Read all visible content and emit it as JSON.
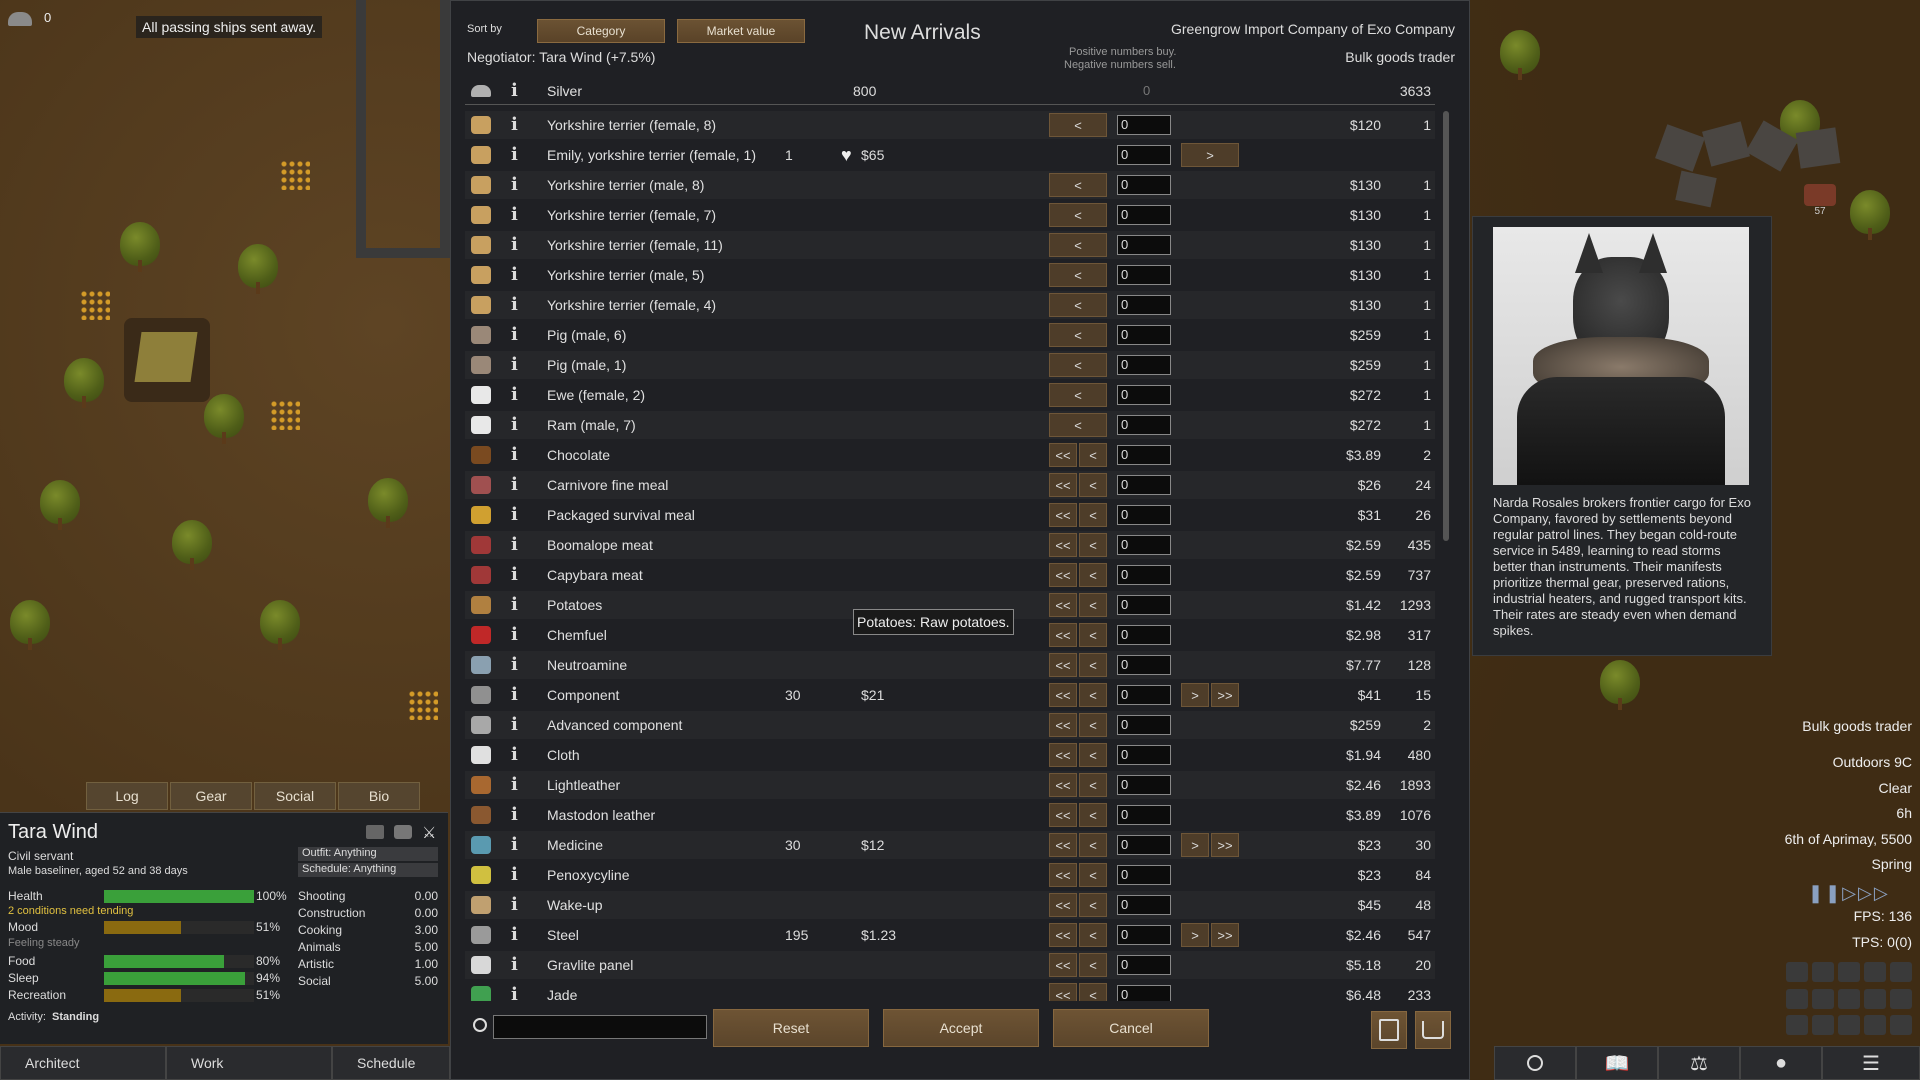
{
  "colony": {
    "count": "0",
    "message": "All passing ships sent away."
  },
  "trade": {
    "sort_label": "Sort by",
    "sort_buttons": [
      "Category",
      "Market value"
    ],
    "title": "New Arrivals",
    "negotiator": "Negotiator: Tara Wind (+7.5%)",
    "hint_buy": "Positive numbers buy.",
    "hint_sell": "Negative numbers sell.",
    "trader_name": "Greengrow Import Company of Exo Company",
    "trader_kind": "Bulk goods trader",
    "silver": {
      "label": "Silver",
      "player": "800",
      "qty": "0",
      "trader": "3633"
    },
    "tooltip": "Potatoes: Raw potatoes.",
    "rows": [
      {
        "label": "Yorkshire terrier (female, 8)",
        "player": "",
        "pprice": "",
        "left": "<",
        "right": "",
        "qty": "0",
        "tprice": "$120",
        "tcount": "1",
        "icon": "dog-icon",
        "color": "#c8a060"
      },
      {
        "label": "Emily, yorkshire terrier (female, 1)",
        "player": "1",
        "pprice": "$65",
        "left": "",
        "right": ">",
        "qty": "0",
        "tprice": "",
        "tcount": "",
        "icon": "dog-icon",
        "color": "#c8a060",
        "bonded": true
      },
      {
        "label": "Yorkshire terrier (male, 8)",
        "player": "",
        "pprice": "",
        "left": "<",
        "right": "",
        "qty": "0",
        "tprice": "$130",
        "tcount": "1",
        "icon": "dog-icon",
        "color": "#c8a060"
      },
      {
        "label": "Yorkshire terrier (female, 7)",
        "player": "",
        "pprice": "",
        "left": "<",
        "right": "",
        "qty": "0",
        "tprice": "$130",
        "tcount": "1",
        "icon": "dog-icon",
        "color": "#c8a060"
      },
      {
        "label": "Yorkshire terrier (female, 11)",
        "player": "",
        "pprice": "",
        "left": "<",
        "right": "",
        "qty": "0",
        "tprice": "$130",
        "tcount": "1",
        "icon": "dog-icon",
        "color": "#c8a060"
      },
      {
        "label": "Yorkshire terrier (male, 5)",
        "player": "",
        "pprice": "",
        "left": "<",
        "right": "",
        "qty": "0",
        "tprice": "$130",
        "tcount": "1",
        "icon": "dog-icon",
        "color": "#c8a060"
      },
      {
        "label": "Yorkshire terrier (female, 4)",
        "player": "",
        "pprice": "",
        "left": "<",
        "right": "",
        "qty": "0",
        "tprice": "$130",
        "tcount": "1",
        "icon": "dog-icon",
        "color": "#c8a060"
      },
      {
        "label": "Pig (male, 6)",
        "player": "",
        "pprice": "",
        "left": "<",
        "right": "",
        "qty": "0",
        "tprice": "$259",
        "tcount": "1",
        "icon": "pig-icon",
        "color": "#9a8878"
      },
      {
        "label": "Pig (male, 1)",
        "player": "",
        "pprice": "",
        "left": "<",
        "right": "",
        "qty": "0",
        "tprice": "$259",
        "tcount": "1",
        "icon": "pig-icon",
        "color": "#9a8878"
      },
      {
        "label": "Ewe (female, 2)",
        "player": "",
        "pprice": "",
        "left": "<",
        "right": "",
        "qty": "0",
        "tprice": "$272",
        "tcount": "1",
        "icon": "sheep-icon",
        "color": "#e8e8e8"
      },
      {
        "label": "Ram (male, 7)",
        "player": "",
        "pprice": "",
        "left": "<",
        "right": "",
        "qty": "0",
        "tprice": "$272",
        "tcount": "1",
        "icon": "sheep-icon",
        "color": "#e8e8e8"
      },
      {
        "label": "Chocolate",
        "player": "",
        "pprice": "",
        "left": "<<|<",
        "right": "",
        "qty": "0",
        "tprice": "$3.89",
        "tcount": "2",
        "icon": "chocolate-icon",
        "color": "#7a4a20"
      },
      {
        "label": "Carnivore fine meal",
        "player": "",
        "pprice": "",
        "left": "<<|<",
        "right": "",
        "qty": "0",
        "tprice": "$26",
        "tcount": "24",
        "icon": "meal-icon",
        "color": "#a05050"
      },
      {
        "label": "Packaged survival meal",
        "player": "",
        "pprice": "",
        "left": "<<|<",
        "right": "",
        "qty": "0",
        "tprice": "$31",
        "tcount": "26",
        "icon": "package-icon",
        "color": "#d0a030"
      },
      {
        "label": "Boomalope meat",
        "player": "",
        "pprice": "",
        "left": "<<|<",
        "right": "",
        "qty": "0",
        "tprice": "$2.59",
        "tcount": "435",
        "icon": "meat-icon",
        "color": "#a03838"
      },
      {
        "label": "Capybara meat",
        "player": "",
        "pprice": "",
        "left": "<<|<",
        "right": "",
        "qty": "0",
        "tprice": "$2.59",
        "tcount": "737",
        "icon": "meat-icon",
        "color": "#a03838"
      },
      {
        "label": "Potatoes",
        "player": "",
        "pprice": "",
        "left": "<<|<",
        "right": "",
        "qty": "0",
        "tprice": "$1.42",
        "tcount": "1293",
        "icon": "potato-icon",
        "color": "#b08040"
      },
      {
        "label": "Chemfuel",
        "player": "",
        "pprice": "",
        "left": "<<|<",
        "right": "",
        "qty": "0",
        "tprice": "$2.98",
        "tcount": "317",
        "icon": "fuel-can-icon",
        "color": "#c02828"
      },
      {
        "label": "Neutroamine",
        "player": "",
        "pprice": "",
        "left": "<<|<",
        "right": "",
        "qty": "0",
        "tprice": "$7.77",
        "tcount": "128",
        "icon": "bottles-icon",
        "color": "#8aa0b0"
      },
      {
        "label": "Component",
        "player": "30",
        "pprice": "$21",
        "left": "<<|<",
        "right": ">|>>",
        "qty": "0",
        "tprice": "$41",
        "tcount": "15",
        "icon": "component-icon",
        "color": "#909090"
      },
      {
        "label": "Advanced component",
        "player": "",
        "pprice": "",
        "left": "<<|<",
        "right": "",
        "qty": "0",
        "tprice": "$259",
        "tcount": "2",
        "icon": "component-icon",
        "color": "#a8a8a8"
      },
      {
        "label": "Cloth",
        "player": "",
        "pprice": "",
        "left": "<<|<",
        "right": "",
        "qty": "0",
        "tprice": "$1.94",
        "tcount": "480",
        "icon": "cloth-icon",
        "color": "#e0e0e0"
      },
      {
        "label": "Lightleather",
        "player": "",
        "pprice": "",
        "left": "<<|<",
        "right": "",
        "qty": "0",
        "tprice": "$2.46",
        "tcount": "1893",
        "icon": "leather-icon",
        "color": "#a86830"
      },
      {
        "label": "Mastodon leather",
        "player": "",
        "pprice": "",
        "left": "<<|<",
        "right": "",
        "qty": "0",
        "tprice": "$3.89",
        "tcount": "1076",
        "icon": "leather-icon",
        "color": "#8a5830"
      },
      {
        "label": "Medicine",
        "player": "30",
        "pprice": "$12",
        "left": "<<|<",
        "right": ">|>>",
        "qty": "0",
        "tprice": "$23",
        "tcount": "30",
        "icon": "medicine-icon",
        "color": "#5a9ab0"
      },
      {
        "label": "Penoxycyline",
        "player": "",
        "pprice": "",
        "left": "<<|<",
        "right": "",
        "qty": "0",
        "tprice": "$23",
        "tcount": "84",
        "icon": "pill-icon",
        "color": "#d0c040"
      },
      {
        "label": "Wake-up",
        "player": "",
        "pprice": "",
        "left": "<<|<",
        "right": "",
        "qty": "0",
        "tprice": "$45",
        "tcount": "48",
        "icon": "pill-icon",
        "color": "#c0a070"
      },
      {
        "label": "Steel",
        "player": "195",
        "pprice": "$1.23",
        "left": "<<|<",
        "right": ">|>>",
        "qty": "0",
        "tprice": "$2.46",
        "tcount": "547",
        "icon": "steel-icon",
        "color": "#9a9a9a"
      },
      {
        "label": "Gravlite panel",
        "player": "",
        "pprice": "",
        "left": "<<|<",
        "right": "",
        "qty": "0",
        "tprice": "$5.18",
        "tcount": "20",
        "icon": "panel-icon",
        "color": "#d8d8d8"
      },
      {
        "label": "Jade",
        "player": "",
        "pprice": "",
        "left": "<<|<",
        "right": "",
        "qty": "0",
        "tprice": "$6.48",
        "tcount": "233",
        "icon": "jade-icon",
        "color": "#40a050"
      }
    ],
    "buttons": {
      "reset": "Reset",
      "accept": "Accept",
      "cancel": "Cancel"
    }
  },
  "pawn": {
    "tabs": [
      "Log",
      "Gear",
      "Social",
      "Bio"
    ],
    "name": "Tara Wind",
    "title": "Civil servant",
    "desc": "Male baseliner, aged 52 and 38 days",
    "outfit": "Outfit: Anything",
    "schedule": "Schedule: Anything",
    "needs": [
      {
        "label": "Health",
        "pct": "100%",
        "value": 1.0,
        "color": "#3aa03a"
      },
      {
        "label": "Mood",
        "pct": "51%",
        "value": 0.51,
        "color": "#8a6a10"
      },
      {
        "label": "Food",
        "pct": "80%",
        "value": 0.8,
        "color": "#3aa03a"
      },
      {
        "label": "Sleep",
        "pct": "94%",
        "value": 0.94,
        "color": "#3aa03a"
      },
      {
        "label": "Recreation",
        "pct": "51%",
        "value": 0.51,
        "color": "#8a6a10"
      }
    ],
    "conditions": "2 conditions need tending",
    "mood_state": "Feeling steady",
    "skills": [
      {
        "label": "Shooting",
        "value": "0.00"
      },
      {
        "label": "Construction",
        "value": "0.00"
      },
      {
        "label": "Cooking",
        "value": "3.00"
      },
      {
        "label": "Animals",
        "value": "5.00"
      },
      {
        "label": "Artistic",
        "value": "1.00"
      },
      {
        "label": "Social",
        "value": "5.00"
      }
    ],
    "activity_label": "Activity:",
    "activity": "Standing"
  },
  "bottom_tabs": [
    "Architect",
    "Work",
    "Schedule"
  ],
  "trader_bio": "Narda Rosales brokers frontier cargo for Exo Company, favored by settlements beyond regular patrol lines. They began cold-route service in 5489, learning to read storms better than instruments. Their manifests prioritize thermal gear, preserved rations, industrial heaters, and rugged transport kits. Their rates are steady even when demand spikes.",
  "right_info": {
    "trader_label": "Bulk goods trader",
    "temp": "Outdoors 9C",
    "weather": "Clear",
    "hour": "6h",
    "date": "6th of Aprimay, 5500",
    "season": "Spring",
    "fps": "FPS: 136",
    "tps": "TPS: 0(0)",
    "corpse_count": "57"
  }
}
